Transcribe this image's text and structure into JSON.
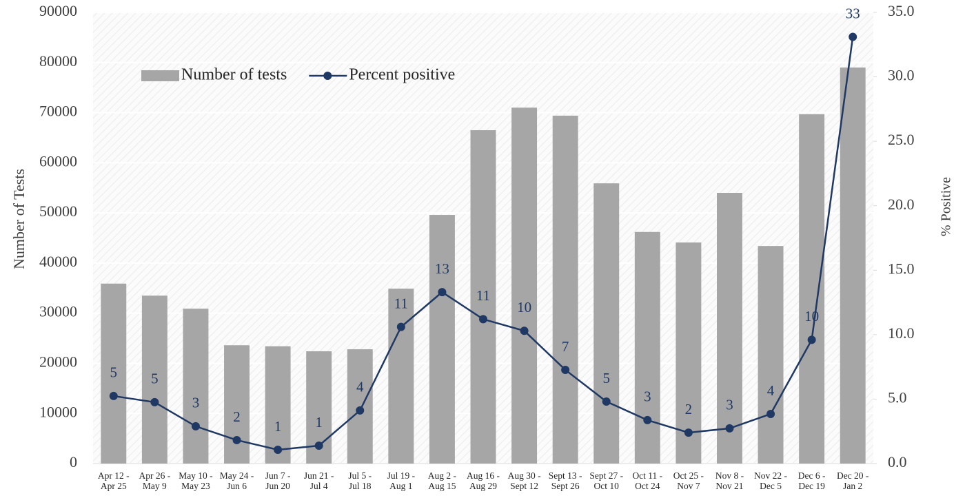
{
  "chart_data": {
    "type": "bar",
    "categories": [
      "Apr 12 -\nApr 25",
      "Apr 26 -\nMay 9",
      "May 10 -\nMay 23",
      "May 24 -\nJun 6",
      "Jun 7 -\nJun 20",
      "Jun 21 -\nJul 4",
      "Jul 5 -\nJul 18",
      "Jul 19 -\nAug 1",
      "Aug 2 -\nAug 15",
      "Aug 16 -\nAug 29",
      "Aug 30 -\nSept 12",
      "Sept 13 -\nSept 26",
      "Sept 27 -\nOct 10",
      "Oct 11 -\nOct 24",
      "Oct 25 -\nNov 7",
      "Nov 8 -\nNov 21",
      "Nov 22 -\nDec 5",
      "Dec 6 -\nDec 19",
      "Dec 20 -\nJan 2"
    ],
    "series": [
      {
        "name": "Number of tests",
        "type": "bar",
        "color": "#a6a6a6",
        "values": [
          35900,
          33500,
          30900,
          23600,
          23400,
          22400,
          22800,
          34900,
          49600,
          66500,
          71000,
          69400,
          55900,
          46200,
          44100,
          54000,
          43400,
          69700,
          79000
        ]
      },
      {
        "name": "Percent positive",
        "type": "line",
        "axis": "y2",
        "color": "#1f3864",
        "values": [
          5.24,
          4.76,
          2.89,
          1.82,
          1.07,
          1.39,
          4.12,
          10.6,
          13.3,
          11.2,
          10.3,
          7.27,
          4.81,
          3.37,
          2.4,
          2.73,
          3.85,
          9.6,
          33.1
        ],
        "value_labels": [
          "5",
          "5",
          "3",
          "2",
          "1",
          "1",
          "4",
          "11",
          "13",
          "11",
          "10",
          "7",
          "5",
          "3",
          "2",
          "3",
          "4",
          "10",
          "33"
        ]
      }
    ],
    "y_label": "Number of Tests",
    "y2_label": "% Positive",
    "ylim": [
      0,
      90000
    ],
    "yticks": [
      0,
      10000,
      20000,
      30000,
      40000,
      50000,
      60000,
      70000,
      80000,
      90000
    ],
    "y2lim": [
      0,
      35
    ],
    "y2ticks": [
      {
        "value": 0,
        "label": "0.0"
      },
      {
        "value": 5,
        "label": "5.0"
      },
      {
        "value": 10,
        "label": "10.0"
      },
      {
        "value": 15,
        "label": "15.0"
      },
      {
        "value": 20,
        "label": "20.0"
      },
      {
        "value": 25,
        "label": "25.0"
      },
      {
        "value": 30,
        "label": "30.0"
      },
      {
        "value": 35,
        "label": "35.0"
      }
    ],
    "grid": true,
    "legend": "top-left"
  }
}
